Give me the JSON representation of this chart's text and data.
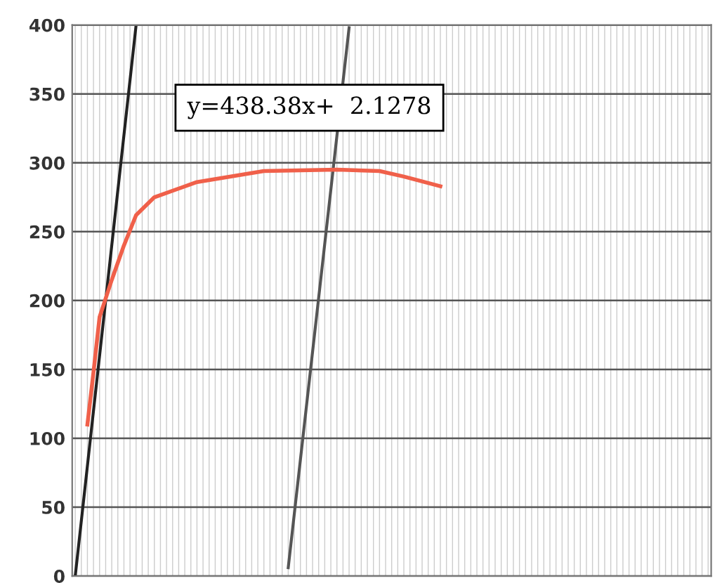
{
  "chart_data": {
    "type": "line",
    "ylim": [
      0,
      400
    ],
    "yticks": [
      0,
      50,
      100,
      150,
      200,
      250,
      300,
      350,
      400
    ],
    "categories": [
      null,
      null,
      null,
      null,
      null,
      null,
      null,
      null,
      null,
      null,
      null,
      null,
      null,
      null,
      null,
      null,
      null,
      null,
      null,
      null,
      null,
      null,
      null,
      null,
      null,
      null,
      null,
      null,
      null,
      null,
      null,
      null,
      null,
      null,
      null,
      null,
      null,
      null,
      null,
      null,
      null,
      null,
      null,
      null,
      null,
      null,
      null,
      null,
      null,
      null,
      null,
      null,
      null,
      null,
      null,
      null,
      null,
      null,
      null,
      null,
      null,
      null,
      null,
      null,
      null,
      null,
      null,
      null,
      null,
      null,
      null,
      null,
      null,
      null,
      null,
      null,
      null,
      null,
      null,
      null,
      null,
      null,
      null,
      null,
      null,
      null,
      null,
      null,
      null,
      null,
      null,
      null,
      null,
      null,
      null,
      null,
      null,
      null,
      null,
      null,
      null,
      null,
      null,
      null,
      null
    ],
    "grid": true,
    "marker": "none",
    "series": [
      {
        "color": "#222222",
        "values": [
          0,
          null,
          null,
          null,
          null,
          null,
          null,
          null,
          null,
          null,
          400,
          null,
          null,
          null,
          null,
          null,
          null,
          null,
          null,
          null,
          null,
          null,
          null,
          null,
          null,
          null,
          null,
          null,
          null,
          null,
          null,
          null,
          null,
          null,
          null,
          null,
          null,
          null,
          null,
          null,
          null,
          null,
          null,
          null,
          null,
          null,
          null,
          null,
          null,
          null,
          null,
          null,
          null,
          null,
          null,
          null,
          null,
          null,
          null,
          null,
          null,
          null,
          null,
          null,
          null,
          null,
          null,
          null,
          null,
          null,
          null,
          null,
          null,
          null,
          null,
          null,
          null,
          null,
          null,
          null,
          null,
          null,
          null,
          null,
          null,
          null,
          null,
          null,
          null,
          null,
          null,
          null,
          null,
          null,
          null,
          null,
          null,
          null,
          null,
          null,
          null,
          null,
          null,
          null,
          null
        ]
      },
      {
        "color": "#555555",
        "values": [
          null,
          null,
          null,
          null,
          null,
          null,
          null,
          null,
          null,
          null,
          null,
          null,
          null,
          null,
          null,
          null,
          null,
          null,
          null,
          null,
          null,
          null,
          null,
          null,
          null,
          null,
          null,
          null,
          null,
          null,
          null,
          null,
          null,
          null,
          null,
          6,
          null,
          null,
          null,
          null,
          null,
          null,
          null,
          null,
          null,
          398,
          null,
          null,
          null,
          null,
          null,
          null,
          null,
          null,
          null,
          null,
          null,
          null,
          null,
          null,
          null,
          null,
          null,
          null,
          null,
          null,
          null,
          null,
          null,
          null,
          null,
          null,
          null,
          null,
          null,
          null,
          null,
          null,
          null,
          null,
          null,
          null,
          null,
          null,
          null,
          null,
          null,
          null,
          null,
          null,
          null,
          null,
          null,
          null,
          null,
          null,
          null,
          null,
          null,
          null,
          null,
          null,
          null,
          null,
          null
        ]
      },
      {
        "color": "#f0604a",
        "values": [
          null,
          null,
          110,
          148,
          188,
          null,
          215,
          null,
          240,
          null,
          262,
          null,
          null,
          275,
          null,
          null,
          null,
          null,
          null,
          null,
          286,
          null,
          null,
          null,
          null,
          null,
          null,
          null,
          null,
          null,
          null,
          294,
          null,
          null,
          null,
          null,
          null,
          null,
          null,
          null,
          null,
          null,
          null,
          295,
          null,
          null,
          null,
          null,
          null,
          null,
          294,
          null,
          null,
          null,
          290,
          null,
          null,
          null,
          null,
          null,
          283,
          null,
          null,
          null,
          null,
          null,
          null,
          null,
          null,
          null,
          null,
          null,
          null,
          null,
          null,
          null,
          null,
          null,
          null,
          null,
          null,
          null,
          null,
          null,
          null,
          null,
          null,
          null,
          null,
          null,
          null,
          null,
          null,
          null,
          null,
          null,
          null,
          null,
          null,
          null,
          null,
          null,
          null,
          null,
          null
        ]
      }
    ],
    "annotations": [
      "y=438.38x+  2.1278"
    ]
  }
}
